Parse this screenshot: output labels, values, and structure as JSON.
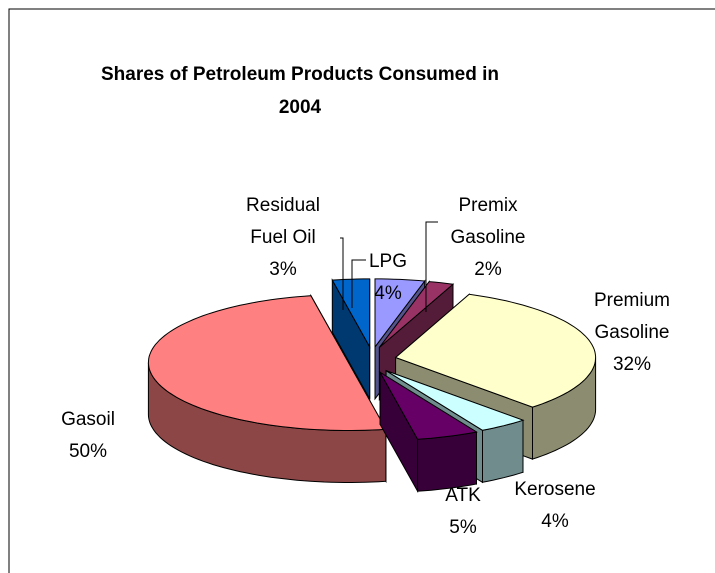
{
  "chart_data": {
    "type": "pie3d",
    "title": "Shares of Petroleum Products Consumed in 2004",
    "categories": [
      "LPG",
      "Premix Gasoline",
      "Premium Gasoline",
      "Kerosene",
      "ATK",
      "Gasoil",
      "Residual Fuel Oil"
    ],
    "values": [
      4,
      2,
      32,
      4,
      5,
      50,
      3
    ],
    "value_labels": [
      "4%",
      "2%",
      "32%",
      "4%",
      "5%",
      "50%",
      "3%"
    ],
    "colors": [
      "#9999ff",
      "#993366",
      "#ffffcc",
      "#ccffff",
      "#660066",
      "#ff8080",
      "#0066cc"
    ]
  }
}
